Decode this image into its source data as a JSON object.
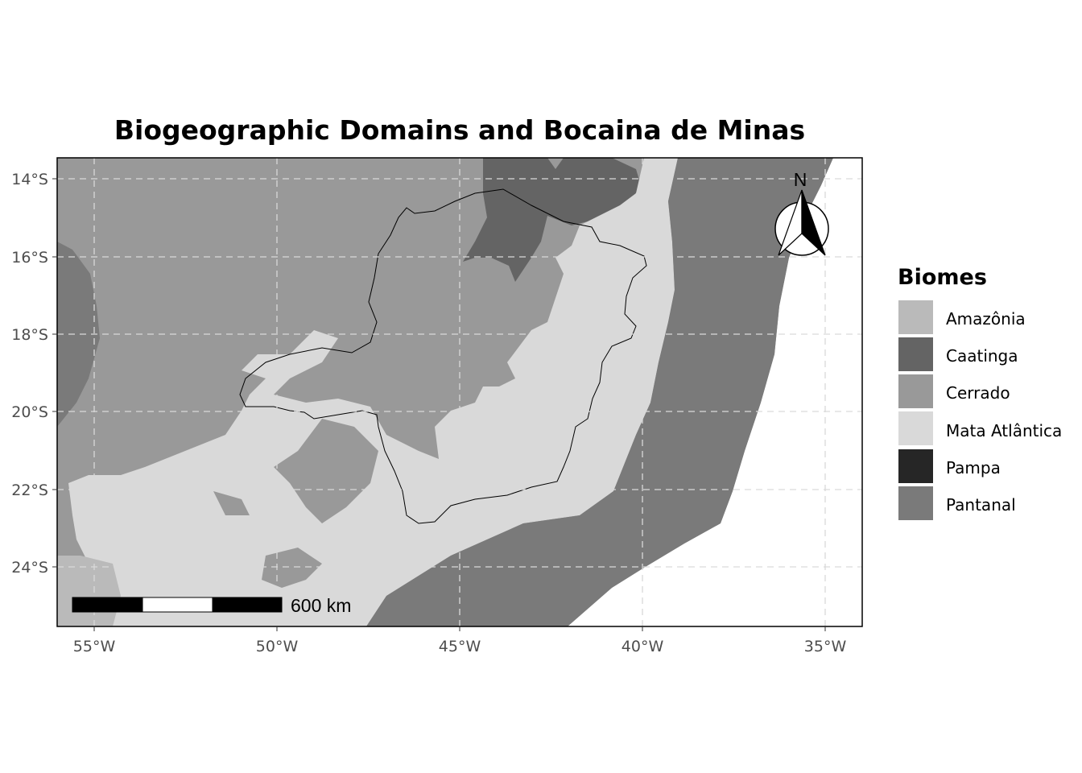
{
  "map": {
    "title": "Biogeographic Domains and Bocaina de Minas",
    "y_ticks": [
      {
        "value": -14,
        "label": "14°S"
      },
      {
        "value": -16,
        "label": "16°S"
      },
      {
        "value": -18,
        "label": "18°S"
      },
      {
        "value": -20,
        "label": "20°S"
      },
      {
        "value": -22,
        "label": "22°S"
      },
      {
        "value": -24,
        "label": "24°S"
      }
    ],
    "x_ticks": [
      {
        "value": -55,
        "label": "55°W"
      },
      {
        "value": -50,
        "label": "50°W"
      },
      {
        "value": -45,
        "label": "45°W"
      },
      {
        "value": -40,
        "label": "40°W"
      },
      {
        "value": -35,
        "label": "35°W"
      }
    ],
    "lon_range": [
      -56,
      -34
    ],
    "lat_range": [
      -25.6,
      -13.5
    ],
    "ocean_color": "#ffffff",
    "grid": "dashed light grey",
    "scale_bar": {
      "label": "600 km"
    },
    "north_arrow": {
      "label": "N"
    }
  },
  "legend": {
    "title": "Biomes",
    "items": [
      {
        "label": "Amazônia",
        "color": "#bababa"
      },
      {
        "label": "Caatinga",
        "color": "#646464"
      },
      {
        "label": "Cerrado",
        "color": "#999999"
      },
      {
        "label": "Mata Atlântica",
        "color": "#d9d9d9"
      },
      {
        "label": "Pampa",
        "color": "#262626"
      },
      {
        "label": "Pantanal",
        "color": "#7a7a7a"
      }
    ]
  }
}
